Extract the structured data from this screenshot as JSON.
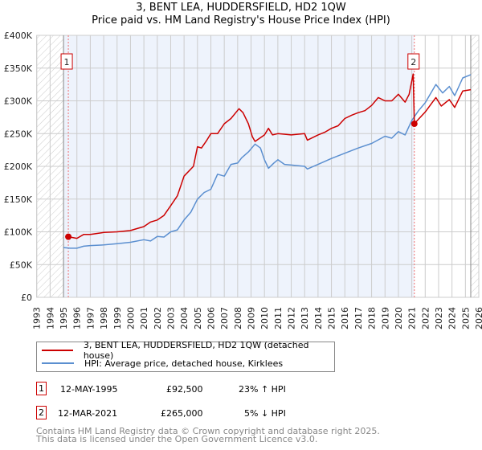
{
  "title": "3, BENT LEA, HUDDERSFIELD, HD2 1QW",
  "subtitle": "Price paid vs. HM Land Registry's House Price Index (HPI)",
  "colors": {
    "property": "#cc0000",
    "hpi": "#5b8fd0",
    "shade": "#eef3fc"
  },
  "legend": {
    "property": "3, BENT LEA, HUDDERSFIELD, HD2 1QW (detached house)",
    "hpi": "HPI: Average price, detached house, Kirklees"
  },
  "sales": [
    {
      "num": "1",
      "date": "12-MAY-1995",
      "price": "£92,500",
      "delta": "23% ↑ HPI"
    },
    {
      "num": "2",
      "date": "12-MAR-2021",
      "price": "£265,000",
      "delta": "5% ↓ HPI"
    }
  ],
  "footer": {
    "line1": "Contains HM Land Registry data © Crown copyright and database right 2025.",
    "line2": "This data is licensed under the Open Government Licence v3.0."
  },
  "chart_data": {
    "type": "line",
    "xlim": [
      1993,
      2026
    ],
    "ylim": [
      0,
      400000
    ],
    "yticks": [
      {
        "v": 0,
        "label": "£0"
      },
      {
        "v": 50,
        "label": "£50K"
      },
      {
        "v": 100,
        "label": "£100K"
      },
      {
        "v": 150,
        "label": "£150K"
      },
      {
        "v": 200,
        "label": "£200K"
      },
      {
        "v": 250,
        "label": "£250K"
      },
      {
        "v": 300,
        "label": "£300K"
      },
      {
        "v": 350,
        "label": "£350K"
      },
      {
        "v": 400,
        "label": "£400K"
      }
    ],
    "xticks": [
      "1993",
      "1994",
      "1995",
      "1996",
      "1997",
      "1998",
      "1999",
      "2000",
      "2001",
      "2002",
      "2003",
      "2004",
      "2005",
      "2006",
      "2007",
      "2008",
      "2009",
      "2010",
      "2011",
      "2012",
      "2013",
      "2014",
      "2015",
      "2016",
      "2017",
      "2018",
      "2019",
      "2020",
      "2021",
      "2022",
      "2023",
      "2024",
      "2025",
      "2026"
    ],
    "data_range": [
      1995,
      2025.4
    ],
    "sale_markers": [
      {
        "label": "1",
        "x": 1995.36,
        "y": 92.5
      },
      {
        "label": "2",
        "x": 2021.19,
        "y": 265
      }
    ],
    "series": [
      {
        "name": "property",
        "unit": "£K",
        "points": [
          [
            1995.36,
            92.5
          ],
          [
            1996,
            90
          ],
          [
            1996.5,
            96
          ],
          [
            1997,
            96
          ],
          [
            1998,
            99
          ],
          [
            1999,
            100
          ],
          [
            2000,
            102
          ],
          [
            2000.5,
            105
          ],
          [
            2001,
            108
          ],
          [
            2001.5,
            115
          ],
          [
            2002,
            118
          ],
          [
            2002.5,
            125
          ],
          [
            2003,
            140
          ],
          [
            2003.5,
            155
          ],
          [
            2004,
            185
          ],
          [
            2004.7,
            200
          ],
          [
            2005,
            230
          ],
          [
            2005.3,
            228
          ],
          [
            2005.7,
            240
          ],
          [
            2006,
            250
          ],
          [
            2006.5,
            250
          ],
          [
            2007,
            265
          ],
          [
            2007.5,
            273
          ],
          [
            2008.1,
            288
          ],
          [
            2008.4,
            282
          ],
          [
            2008.8,
            265
          ],
          [
            2009.1,
            245
          ],
          [
            2009.3,
            238
          ],
          [
            2010,
            248
          ],
          [
            2010.3,
            258
          ],
          [
            2010.6,
            248
          ],
          [
            2011,
            250
          ],
          [
            2012,
            248
          ],
          [
            2013,
            250
          ],
          [
            2013.2,
            240
          ],
          [
            2014,
            248
          ],
          [
            2014.5,
            252
          ],
          [
            2015,
            258
          ],
          [
            2015.5,
            262
          ],
          [
            2016,
            273
          ],
          [
            2016.5,
            278
          ],
          [
            2017,
            282
          ],
          [
            2017.5,
            285
          ],
          [
            2018,
            293
          ],
          [
            2018.5,
            305
          ],
          [
            2019,
            300
          ],
          [
            2019.5,
            300
          ],
          [
            2019.8,
            306
          ],
          [
            2020,
            310
          ],
          [
            2020.5,
            298
          ],
          [
            2020.8,
            310
          ],
          [
            2021.1,
            341
          ],
          [
            2021.19,
            265
          ],
          [
            2021.5,
            272
          ],
          [
            2022,
            283
          ],
          [
            2022.8,
            305
          ],
          [
            2023.2,
            292
          ],
          [
            2023.8,
            302
          ],
          [
            2024.2,
            290
          ],
          [
            2024.8,
            315
          ],
          [
            2025.4,
            317
          ]
        ]
      },
      {
        "name": "hpi",
        "unit": "£K",
        "points": [
          [
            1995,
            76
          ],
          [
            1995.5,
            75
          ],
          [
            1996,
            75
          ],
          [
            1996.5,
            78
          ],
          [
            1997,
            79
          ],
          [
            1998,
            80
          ],
          [
            1999,
            82
          ],
          [
            2000,
            84
          ],
          [
            2001,
            88
          ],
          [
            2001.5,
            86
          ],
          [
            2002,
            93
          ],
          [
            2002.5,
            92
          ],
          [
            2003,
            100
          ],
          [
            2003.5,
            103
          ],
          [
            2004,
            118
          ],
          [
            2004.5,
            130
          ],
          [
            2005,
            150
          ],
          [
            2005.5,
            160
          ],
          [
            2006,
            165
          ],
          [
            2006.5,
            188
          ],
          [
            2007,
            185
          ],
          [
            2007.5,
            203
          ],
          [
            2008,
            205
          ],
          [
            2008.3,
            213
          ],
          [
            2008.8,
            222
          ],
          [
            2009.3,
            234
          ],
          [
            2009.7,
            228
          ],
          [
            2010,
            210
          ],
          [
            2010.3,
            197
          ],
          [
            2010.7,
            205
          ],
          [
            2011,
            210
          ],
          [
            2011.5,
            203
          ],
          [
            2012,
            202
          ],
          [
            2013,
            200
          ],
          [
            2013.2,
            196
          ],
          [
            2014,
            203
          ],
          [
            2015,
            212
          ],
          [
            2016,
            220
          ],
          [
            2017,
            228
          ],
          [
            2018,
            235
          ],
          [
            2019,
            246
          ],
          [
            2019.5,
            243
          ],
          [
            2020,
            253
          ],
          [
            2020.5,
            248
          ],
          [
            2021,
            270
          ],
          [
            2021.5,
            285
          ],
          [
            2022,
            297
          ],
          [
            2022.8,
            325
          ],
          [
            2023.3,
            312
          ],
          [
            2023.8,
            322
          ],
          [
            2024.2,
            308
          ],
          [
            2024.8,
            335
          ],
          [
            2025.4,
            340
          ]
        ]
      }
    ]
  }
}
